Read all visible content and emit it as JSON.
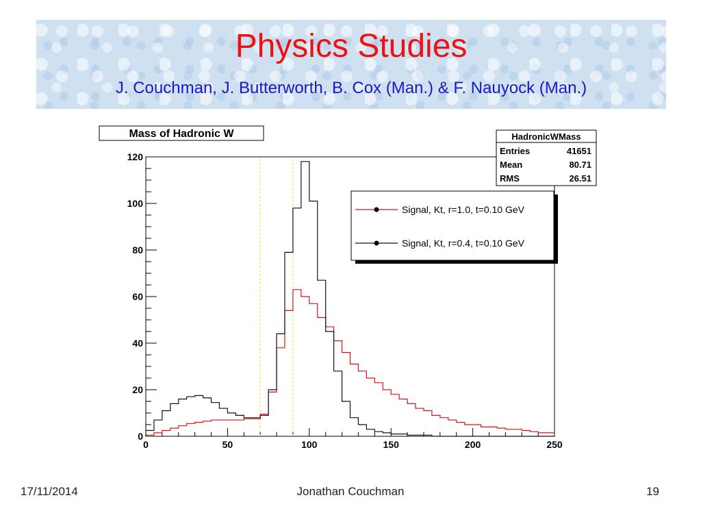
{
  "slide": {
    "title": "Physics Studies",
    "subtitle": "J. Couchman, J. Butterworth, B. Cox (Man.) & F. Nauyock (Man.)",
    "footer_date": "17/11/2014",
    "footer_author": "Jonathan Couchman",
    "footer_page": "19"
  },
  "chart_data": {
    "type": "step-histogram",
    "title": "Mass of Hadronic W",
    "xlim": [
      0,
      250
    ],
    "ylim": [
      0,
      120
    ],
    "xticks": [
      0,
      50,
      100,
      150,
      200,
      250
    ],
    "yticks": [
      0,
      20,
      40,
      60,
      80,
      100,
      120
    ],
    "xlabel": "",
    "ylabel": "",
    "bin_width": 5,
    "bin_edges_start": 0,
    "vertical_markers": [
      70,
      90
    ],
    "marker_color": "#f2e400",
    "stats_box": {
      "name": "HadronicWMass",
      "rows": [
        {
          "label": "Entries",
          "value": "41651"
        },
        {
          "label": "Mean",
          "value": "80.71"
        },
        {
          "label": "RMS",
          "value": "26.51"
        }
      ]
    },
    "legend_placement": "top-right",
    "series": [
      {
        "name": "Signal, Kt, r=1.0, t=0.10 GeV",
        "color": "#e01010",
        "values": [
          0.5,
          1.5,
          2.5,
          3.5,
          4.5,
          5.5,
          6,
          6.5,
          7,
          7,
          7,
          7,
          7.5,
          7.5,
          9.5,
          19,
          38,
          54,
          63,
          60,
          57,
          51,
          47,
          41,
          36,
          31,
          28,
          25,
          23,
          20,
          18,
          16,
          14,
          12,
          11,
          9,
          8,
          7,
          6,
          5,
          5,
          4,
          4,
          3.5,
          3,
          3,
          2.5,
          2,
          1.5,
          1.5
        ]
      },
      {
        "name": "Signal, Kt, r=0.4, t=0.10 GeV",
        "color": "#111111",
        "values": [
          2.5,
          7,
          11,
          14,
          16,
          17,
          17.5,
          16.5,
          14.5,
          12,
          10,
          9,
          8,
          8,
          9,
          20,
          44,
          79,
          98,
          118,
          101,
          67,
          45,
          28,
          15,
          8,
          5,
          3,
          2,
          1.5,
          1,
          1,
          0.5,
          0.5,
          0.5,
          0,
          0,
          0,
          0,
          0,
          0,
          0,
          0,
          0,
          0,
          0,
          0,
          0,
          0,
          0
        ]
      }
    ]
  }
}
